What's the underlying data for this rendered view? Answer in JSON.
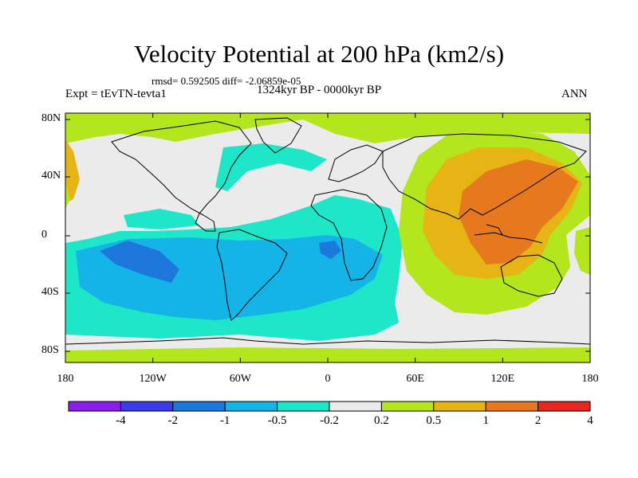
{
  "header": {
    "title": "Velocity Potential at 200 hPa (km2/s)",
    "stats": "rmsd= 0.592505 diff= -2.06859e-05",
    "period": "1324kyr BP - 0000kyr BP",
    "expt": "Expt = tEvTN-tevta1",
    "season": "ANN"
  },
  "axes": {
    "lat_ticks": [
      "80N",
      "40N",
      "0",
      "40S",
      "80S"
    ],
    "lon_ticks": [
      "180",
      "120W",
      "60W",
      "0",
      "60E",
      "120E",
      "180"
    ]
  },
  "colorbar": {
    "labels": [
      "-4",
      "-2",
      "-1",
      "-0.5",
      "-0.2",
      "0.2",
      "0.5",
      "1",
      "2",
      "4"
    ],
    "colors": [
      "#8a1ee6",
      "#3c3ce6",
      "#1e78dc",
      "#14b4e6",
      "#1ee6c8",
      "#ebebeb",
      "#b4e61e",
      "#e6b414",
      "#e6781e",
      "#e6281e"
    ]
  },
  "colors": {
    "land_outline": "#000000",
    "background": "#ffffff"
  }
}
